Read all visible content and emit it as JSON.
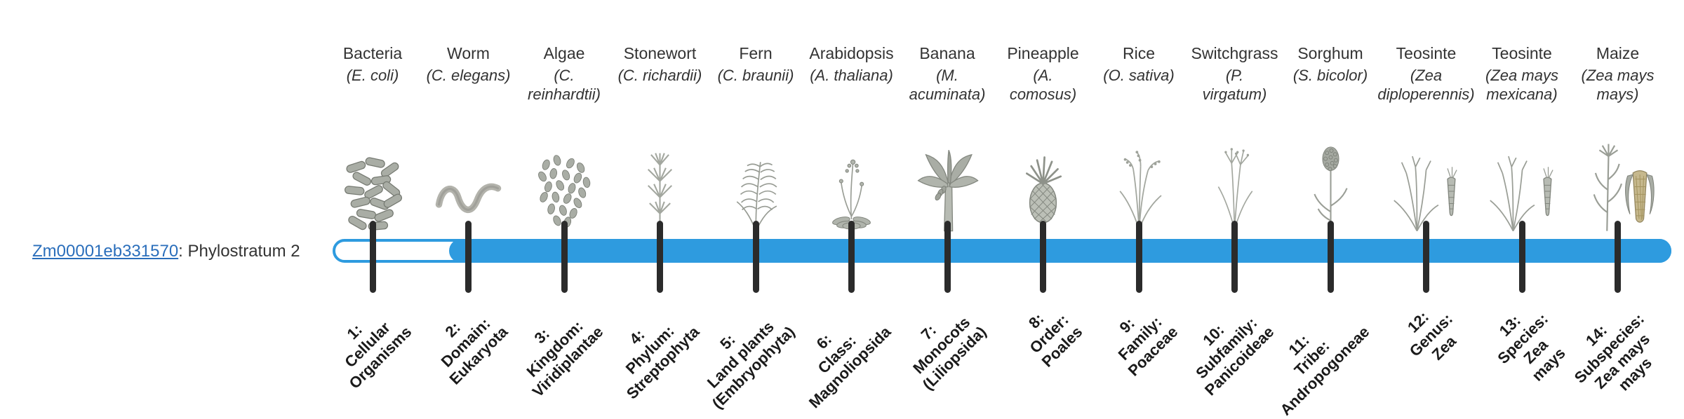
{
  "gene": {
    "id": "Zm00001eb331570",
    "suffix": ": Phylostratum 2"
  },
  "colors": {
    "bar": "#2E9BDF",
    "tick": "#2b2b2b",
    "link": "#2a6ebb",
    "text": "#333333"
  },
  "organisms": [
    {
      "common": "Bacteria",
      "sci": "(E. coli)",
      "icon": "bacteria-icon"
    },
    {
      "common": "Worm",
      "sci": "(C. elegans)",
      "icon": "worm-icon"
    },
    {
      "common": "Algae",
      "sci": "(C.\nreinhardtii)",
      "icon": "algae-icon"
    },
    {
      "common": "Stonewort",
      "sci": "(C. richardii)",
      "icon": "stonewort-icon"
    },
    {
      "common": "Fern",
      "sci": "(C. braunii)",
      "icon": "fern-icon"
    },
    {
      "common": "Arabidopsis",
      "sci": "(A. thaliana)",
      "icon": "arabidopsis-icon"
    },
    {
      "common": "Banana",
      "sci": "(M.\nacuminata)",
      "icon": "banana-icon"
    },
    {
      "common": "Pineapple",
      "sci": "(A.\ncomosus)",
      "icon": "pineapple-icon"
    },
    {
      "common": "Rice",
      "sci": "(O. sativa)",
      "icon": "rice-icon"
    },
    {
      "common": "Switchgrass",
      "sci": "(P.\nvirgatum)",
      "icon": "switchgrass-icon"
    },
    {
      "common": "Sorghum",
      "sci": "(S. bicolor)",
      "icon": "sorghum-icon"
    },
    {
      "common": "Teosinte",
      "sci": "(Zea\ndiploperennis)",
      "icon": "teosinte-icon"
    },
    {
      "common": "Teosinte",
      "sci": "(Zea mays\nmexicana)",
      "icon": "teosinte-icon"
    },
    {
      "common": "Maize",
      "sci": "(Zea mays\nmays)",
      "icon": "maize-icon"
    }
  ],
  "phylostrata": [
    "1:\nCellular\nOrganisms",
    "2:\nDomain:\nEukaryota",
    "3:\nKingdom:\nViridiplantae",
    "4:\nPhylum:\nStreptophyta",
    "5:\nLand plants\n(Embryophyta)",
    "6:\nClass:\nMagnoliopsida",
    "7:\nMonocots\n(Liliopsida)",
    "8:\nOrder:\nPoales",
    "9:\nFamily:\nPoaceae",
    "10:\nSubfamily:\nPanicoideae",
    "11:\nTribe:\nAndropogoneae",
    "12:\nGenus:\nZea",
    "13:\nSpecies:\nZea\nmays",
    "14:\nSubspecies:\nZea mays\nmays"
  ]
}
